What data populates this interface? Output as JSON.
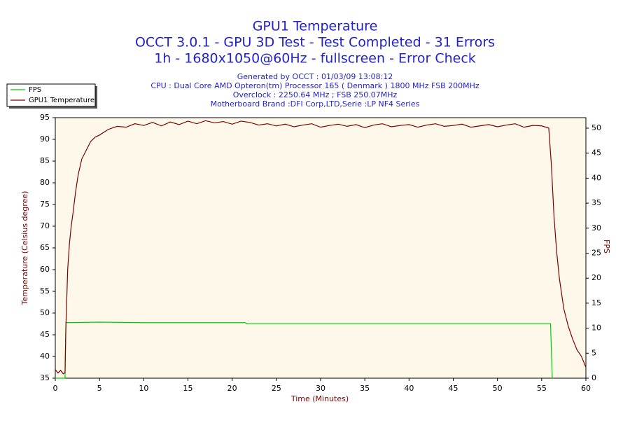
{
  "chart_data": {
    "type": "line",
    "title": "GPU1 Temperature",
    "subtitle": [
      "OCCT 3.0.1 - GPU 3D Test - Test Completed - 31 Errors",
      "1h - 1680x1050@60Hz - fullscreen - Error Check"
    ],
    "info": [
      "Generated by OCCT : 01/03/09 13:08:12",
      "CPU : Dual Core AMD Opteron(tm) Processor 165  ( Denmark ) 1800 MHz FSB 200MHz",
      "Overclock : 2250.64 MHz ; FSB 250.07MHz",
      "Motherboard Brand :DFI Corp,LTD,Serie :LP NF4 Series"
    ],
    "x_label": "Time (Minutes)",
    "y_label": "Temperature (Celsius degree)",
    "y2_label": "FPS",
    "xlim": [
      0,
      60
    ],
    "xticks": [
      0,
      5,
      10,
      15,
      20,
      25,
      30,
      35,
      40,
      45,
      50,
      55,
      60
    ],
    "ylim": [
      35,
      95
    ],
    "yticks": [
      35,
      40,
      45,
      50,
      55,
      60,
      65,
      70,
      75,
      80,
      85,
      90,
      95
    ],
    "y2lim": [
      0,
      52.1
    ],
    "y2ticks": [
      0,
      5,
      10,
      15,
      20,
      25,
      30,
      35,
      40,
      45,
      50
    ],
    "grid": false,
    "legend": "top-left",
    "series": [
      {
        "name": "FPS",
        "color": "#00cc00",
        "axis": "y2",
        "x": [
          0,
          1.1,
          1.2,
          5,
          10,
          21.5,
          21.7,
          40,
          56,
          56.2
        ],
        "values": [
          0,
          0,
          11.1,
          11.2,
          11.1,
          11.1,
          10.9,
          10.9,
          10.9,
          0
        ]
      },
      {
        "name": "GPU1 Temperature",
        "color": "#800000",
        "x": [
          0,
          0.3,
          0.6,
          0.9,
          1.1,
          1.2,
          1.4,
          1.6,
          1.8,
          2,
          2.3,
          2.6,
          3,
          3.5,
          4,
          4.5,
          5,
          6,
          7,
          8,
          9,
          10,
          11,
          12,
          13,
          14,
          15,
          16,
          17,
          18,
          19,
          20,
          21,
          22,
          23,
          24,
          25,
          26,
          27,
          28,
          29,
          30,
          31,
          32,
          33,
          34,
          35,
          36,
          37,
          38,
          39,
          40,
          41,
          42,
          43,
          44,
          45,
          46,
          47,
          48,
          49,
          50,
          51,
          52,
          53,
          54,
          55,
          55.8,
          56.1,
          56.4,
          56.7,
          57,
          57.5,
          58,
          58.5,
          59,
          59.5,
          60
        ],
        "values": [
          37,
          36.2,
          36.8,
          36,
          36.3,
          47,
          60,
          66,
          70,
          73,
          78,
          82,
          85.5,
          87.5,
          89.5,
          90.5,
          91,
          92.3,
          93,
          92.8,
          93.6,
          93.2,
          93.9,
          93.1,
          94,
          93.4,
          94.2,
          93.6,
          94.3,
          93.8,
          94.1,
          93.5,
          94.2,
          93.9,
          93.3,
          93.6,
          93.1,
          93.5,
          92.9,
          93.3,
          93.6,
          92.8,
          93.2,
          93.5,
          93,
          93.4,
          92.7,
          93.3,
          93.6,
          92.9,
          93.2,
          93.4,
          92.8,
          93.3,
          93.6,
          93,
          93.2,
          93.5,
          92.8,
          93.1,
          93.4,
          92.9,
          93.3,
          93.6,
          92.8,
          93.2,
          93.1,
          92.6,
          84,
          72,
          64,
          58,
          51,
          47,
          44,
          41.5,
          40,
          37.5
        ]
      }
    ]
  }
}
